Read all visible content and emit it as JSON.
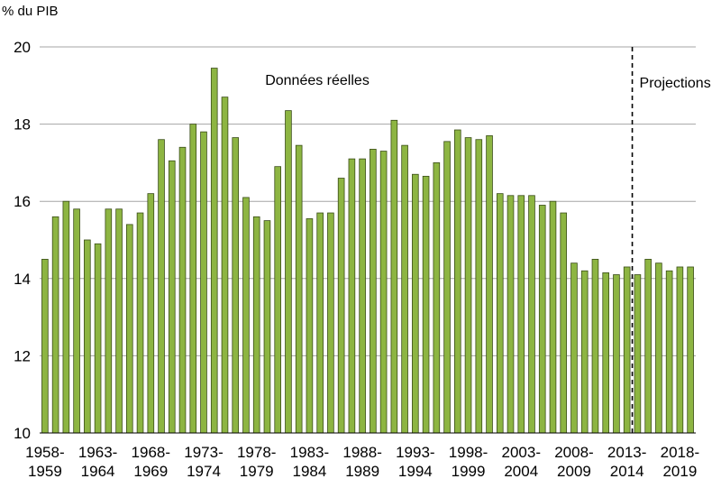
{
  "chart_data": {
    "type": "bar",
    "ylabel": "% du PIB",
    "xlabel": "",
    "title": "",
    "ylim": [
      10,
      20
    ],
    "yticks": [
      10,
      12,
      14,
      16,
      18,
      20
    ],
    "grid": true,
    "bar_color": "#8db542",
    "bar_edge_color": "#3a4d18",
    "categories": [
      "1958-1959",
      "1959-1960",
      "1960-1961",
      "1961-1962",
      "1962-1963",
      "1963-1964",
      "1964-1965",
      "1965-1966",
      "1966-1967",
      "1967-1968",
      "1968-1969",
      "1969-1970",
      "1970-1971",
      "1971-1972",
      "1972-1973",
      "1973-1974",
      "1974-1975",
      "1975-1976",
      "1976-1977",
      "1977-1978",
      "1978-1979",
      "1979-1980",
      "1980-1981",
      "1981-1982",
      "1982-1983",
      "1983-1984",
      "1984-1985",
      "1985-1986",
      "1986-1987",
      "1987-1988",
      "1988-1989",
      "1989-1990",
      "1990-1991",
      "1991-1992",
      "1992-1993",
      "1993-1994",
      "1994-1995",
      "1995-1996",
      "1996-1997",
      "1997-1998",
      "1998-1999",
      "1999-2000",
      "2000-2001",
      "2001-2002",
      "2002-2003",
      "2003-2004",
      "2004-2005",
      "2005-2006",
      "2006-2007",
      "2007-2008",
      "2008-2009",
      "2009-2010",
      "2010-2011",
      "2011-2012",
      "2012-2013",
      "2013-2014",
      "2014-2015",
      "2015-2016",
      "2016-2017",
      "2017-2018",
      "2018-2019",
      "2019-2020"
    ],
    "values": [
      14.5,
      15.6,
      16.0,
      15.8,
      15.0,
      14.9,
      15.8,
      15.8,
      15.4,
      15.7,
      16.2,
      17.6,
      17.05,
      17.4,
      18.0,
      17.8,
      19.45,
      18.7,
      17.65,
      16.1,
      15.6,
      15.5,
      16.9,
      18.35,
      17.45,
      15.55,
      15.7,
      15.7,
      16.6,
      17.1,
      17.1,
      17.35,
      17.3,
      18.1,
      17.45,
      16.7,
      16.65,
      17.0,
      17.55,
      17.85,
      17.65,
      17.6,
      17.7,
      16.2,
      16.15,
      16.15,
      16.15,
      15.9,
      16.0,
      15.7,
      14.4,
      14.2,
      14.5,
      14.15,
      14.1,
      14.3,
      14.1,
      14.5,
      14.4,
      14.2,
      14.3,
      14.3
    ],
    "x_tick_labels": [
      {
        "index": 0,
        "line1": "1958-",
        "line2": "1959"
      },
      {
        "index": 5,
        "line1": "1963-",
        "line2": "1964"
      },
      {
        "index": 10,
        "line1": "1968-",
        "line2": "1969"
      },
      {
        "index": 15,
        "line1": "1973-",
        "line2": "1974"
      },
      {
        "index": 20,
        "line1": "1978-",
        "line2": "1979"
      },
      {
        "index": 25,
        "line1": "1983-",
        "line2": "1984"
      },
      {
        "index": 30,
        "line1": "1988-",
        "line2": "1989"
      },
      {
        "index": 35,
        "line1": "1993-",
        "line2": "1994"
      },
      {
        "index": 40,
        "line1": "1998-",
        "line2": "1999"
      },
      {
        "index": 45,
        "line1": "2003-",
        "line2": "2004"
      },
      {
        "index": 50,
        "line1": "2008-",
        "line2": "2009"
      },
      {
        "index": 55,
        "line1": "2013-",
        "line2": "2014"
      },
      {
        "index": 60,
        "line1": "2018-",
        "line2": "2019"
      }
    ],
    "annotations": {
      "actual_label": "Données réelles",
      "projection_label": "Projections",
      "projection_divider_after_index": 55
    }
  }
}
